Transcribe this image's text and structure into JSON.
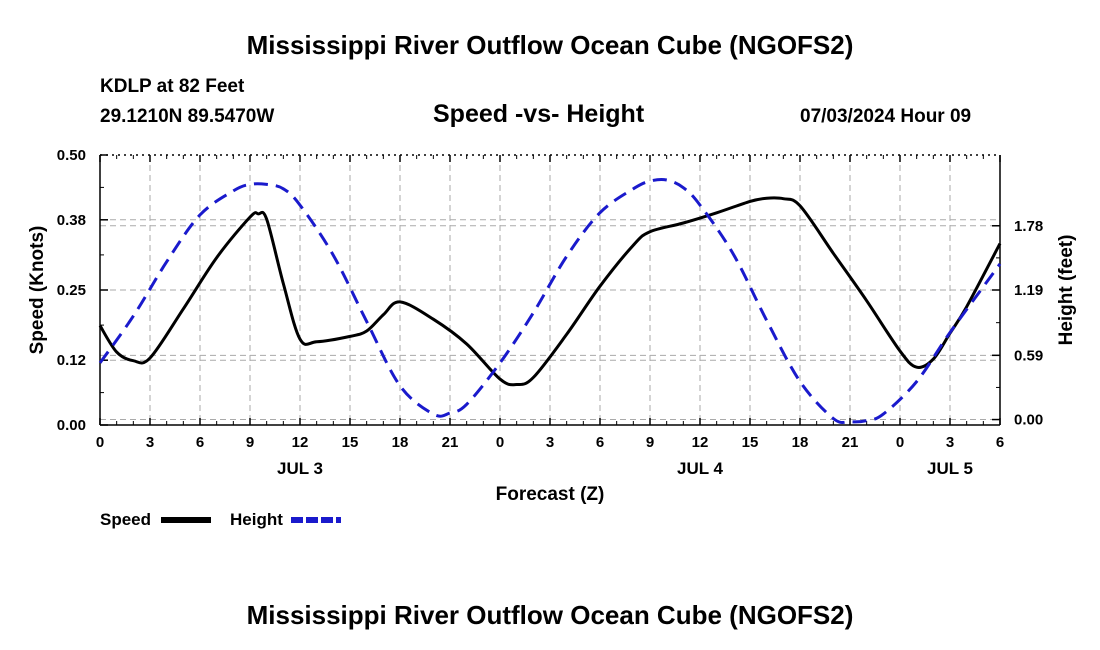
{
  "page": {
    "title_top": "Mississippi River Outflow Ocean Cube (NGOFS2)",
    "title_bottom": "Mississippi River Outflow Ocean Cube (NGOFS2)",
    "station": "KDLP at 82 Feet",
    "coords": "29.1210N  89.5470W",
    "subtitle": "Speed -vs- Height",
    "datetime": "07/03/2024 Hour 09"
  },
  "colors": {
    "speed": "#000000",
    "height": "#1a1acc",
    "grid": "#aaaaaa"
  },
  "chart_data": {
    "type": "line",
    "title": "Speed -vs- Height",
    "xlabel": "Forecast (Z)",
    "ylabel": "Speed (Knots)",
    "y2label": "Height (feet)",
    "x_range_hours": [
      0,
      54
    ],
    "x_tick_labels": [
      "0",
      "3",
      "6",
      "9",
      "12",
      "15",
      "18",
      "21",
      "0",
      "3",
      "6",
      "9",
      "12",
      "15",
      "18",
      "21",
      "0",
      "3",
      "6"
    ],
    "day_labels": [
      {
        "label": "JUL 3",
        "hour": 12
      },
      {
        "label": "JUL 4",
        "hour": 36
      },
      {
        "label": "JUL 5",
        "hour": 51
      }
    ],
    "ylim": [
      0,
      0.5
    ],
    "y_ticks": [
      0.0,
      0.12,
      0.25,
      0.38,
      0.5
    ],
    "y_tick_labels": [
      "0.00",
      "0.12",
      "0.25",
      "0.38",
      "0.50"
    ],
    "y2lim": [
      -0.05,
      2.43
    ],
    "y2_ticks": [
      0.0,
      0.59,
      1.19,
      1.78
    ],
    "y2_tick_labels": [
      "0.00",
      "0.59",
      "1.19",
      "1.78"
    ],
    "legend": [
      "Speed",
      "Height"
    ],
    "series": [
      {
        "name": "Speed",
        "axis": "left",
        "x": [
          0,
          1,
          2,
          3,
          5,
          7,
          9,
          9.5,
          10,
          11,
          12,
          13,
          15,
          16,
          17,
          18,
          20,
          22,
          24,
          25,
          26,
          28,
          30,
          32,
          33,
          35,
          37,
          39,
          40,
          41,
          42,
          44,
          46,
          48,
          49,
          50,
          51,
          52,
          54
        ],
        "values": [
          0.184,
          0.135,
          0.119,
          0.124,
          0.215,
          0.31,
          0.385,
          0.391,
          0.381,
          0.262,
          0.159,
          0.154,
          0.164,
          0.174,
          0.204,
          0.228,
          0.196,
          0.15,
          0.085,
          0.075,
          0.088,
          0.168,
          0.257,
          0.333,
          0.358,
          0.374,
          0.393,
          0.414,
          0.42,
          0.419,
          0.406,
          0.318,
          0.23,
          0.137,
          0.107,
          0.122,
          0.17,
          0.219,
          0.336
        ]
      },
      {
        "name": "Height",
        "axis": "right",
        "x": [
          0,
          2,
          4,
          6,
          8,
          9,
          10,
          11,
          12,
          14,
          16,
          18,
          20,
          21,
          22,
          24,
          26,
          28,
          30,
          32,
          33,
          34,
          35,
          36,
          38,
          40,
          42,
          44,
          45,
          46,
          47,
          49,
          51,
          53,
          54
        ],
        "values": [
          0.52,
          0.95,
          1.45,
          1.88,
          2.1,
          2.16,
          2.16,
          2.12,
          1.97,
          1.51,
          0.9,
          0.31,
          0.05,
          0.06,
          0.14,
          0.52,
          0.98,
          1.5,
          1.9,
          2.12,
          2.19,
          2.2,
          2.13,
          1.97,
          1.52,
          0.91,
          0.35,
          0.01,
          -0.02,
          -0.01,
          0.05,
          0.35,
          0.8,
          1.22,
          1.43
        ]
      }
    ]
  }
}
